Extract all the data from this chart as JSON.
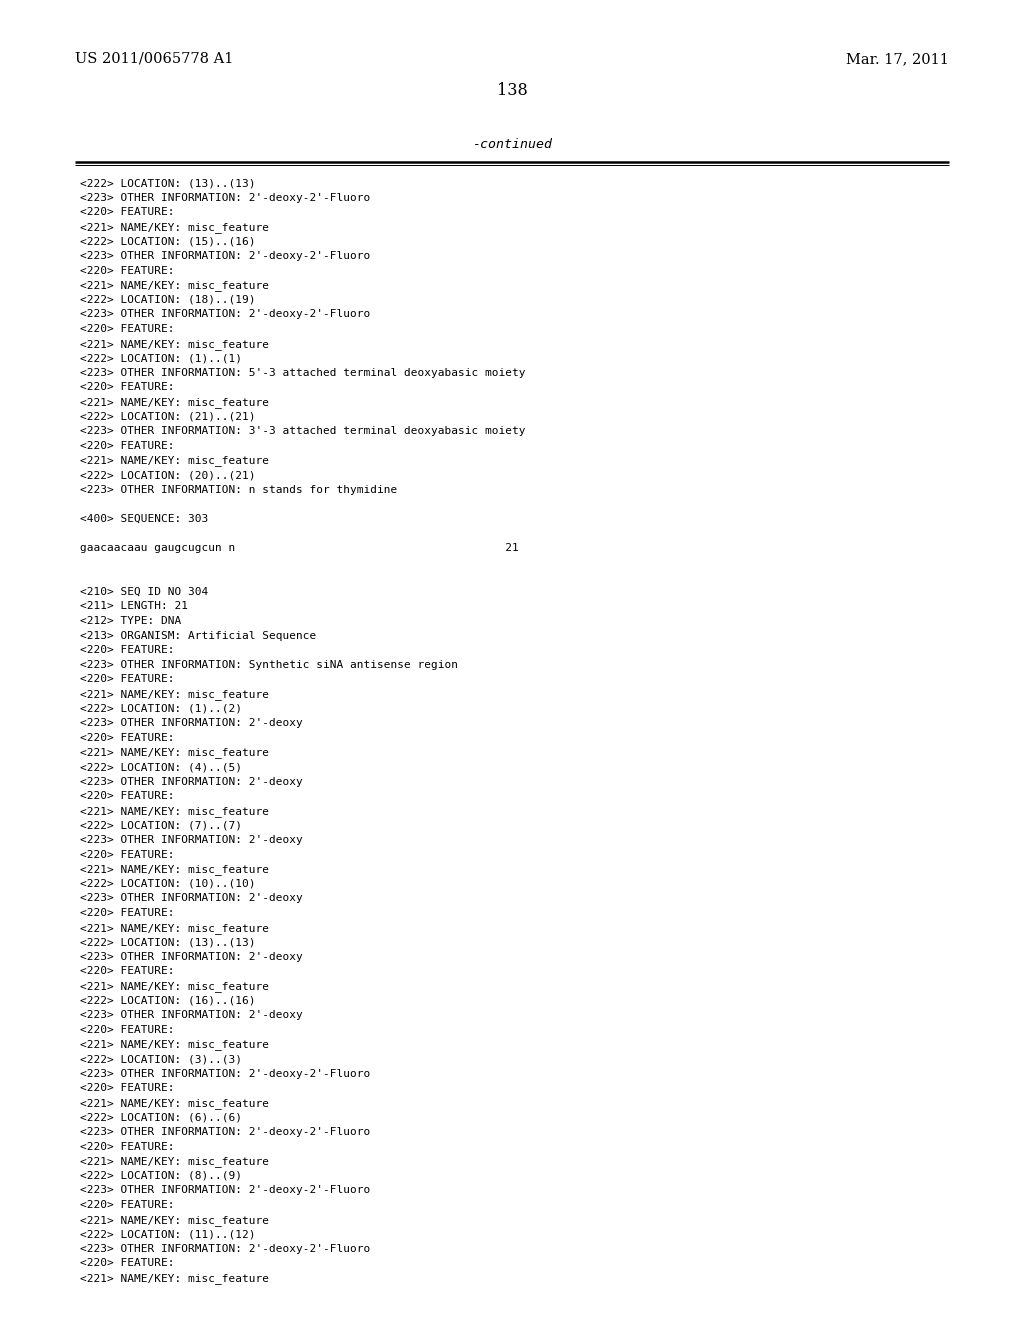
{
  "header_left": "US 2011/0065778 A1",
  "header_right": "Mar. 17, 2011",
  "page_number": "138",
  "continued_text": "-continued",
  "background_color": "#ffffff",
  "text_color": "#000000",
  "figwidth": 10.24,
  "figheight": 13.2,
  "dpi": 100,
  "content_lines": [
    "<222> LOCATION: (13)..(13)",
    "<223> OTHER INFORMATION: 2'-deoxy-2'-Fluoro",
    "<220> FEATURE:",
    "<221> NAME/KEY: misc_feature",
    "<222> LOCATION: (15)..(16)",
    "<223> OTHER INFORMATION: 2'-deoxy-2'-Fluoro",
    "<220> FEATURE:",
    "<221> NAME/KEY: misc_feature",
    "<222> LOCATION: (18)..(19)",
    "<223> OTHER INFORMATION: 2'-deoxy-2'-Fluoro",
    "<220> FEATURE:",
    "<221> NAME/KEY: misc_feature",
    "<222> LOCATION: (1)..(1)",
    "<223> OTHER INFORMATION: 5'-3 attached terminal deoxyabasic moiety",
    "<220> FEATURE:",
    "<221> NAME/KEY: misc_feature",
    "<222> LOCATION: (21)..(21)",
    "<223> OTHER INFORMATION: 3'-3 attached terminal deoxyabasic moiety",
    "<220> FEATURE:",
    "<221> NAME/KEY: misc_feature",
    "<222> LOCATION: (20)..(21)",
    "<223> OTHER INFORMATION: n stands for thymidine",
    "",
    "<400> SEQUENCE: 303",
    "",
    "gaacaacaau gaugcugcun n                                        21",
    "",
    "",
    "<210> SEQ ID NO 304",
    "<211> LENGTH: 21",
    "<212> TYPE: DNA",
    "<213> ORGANISM: Artificial Sequence",
    "<220> FEATURE:",
    "<223> OTHER INFORMATION: Synthetic siNA antisense region",
    "<220> FEATURE:",
    "<221> NAME/KEY: misc_feature",
    "<222> LOCATION: (1)..(2)",
    "<223> OTHER INFORMATION: 2'-deoxy",
    "<220> FEATURE:",
    "<221> NAME/KEY: misc_feature",
    "<222> LOCATION: (4)..(5)",
    "<223> OTHER INFORMATION: 2'-deoxy",
    "<220> FEATURE:",
    "<221> NAME/KEY: misc_feature",
    "<222> LOCATION: (7)..(7)",
    "<223> OTHER INFORMATION: 2'-deoxy",
    "<220> FEATURE:",
    "<221> NAME/KEY: misc_feature",
    "<222> LOCATION: (10)..(10)",
    "<223> OTHER INFORMATION: 2'-deoxy",
    "<220> FEATURE:",
    "<221> NAME/KEY: misc_feature",
    "<222> LOCATION: (13)..(13)",
    "<223> OTHER INFORMATION: 2'-deoxy",
    "<220> FEATURE:",
    "<221> NAME/KEY: misc_feature",
    "<222> LOCATION: (16)..(16)",
    "<223> OTHER INFORMATION: 2'-deoxy",
    "<220> FEATURE:",
    "<221> NAME/KEY: misc_feature",
    "<222> LOCATION: (3)..(3)",
    "<223> OTHER INFORMATION: 2'-deoxy-2'-Fluoro",
    "<220> FEATURE:",
    "<221> NAME/KEY: misc_feature",
    "<222> LOCATION: (6)..(6)",
    "<223> OTHER INFORMATION: 2'-deoxy-2'-Fluoro",
    "<220> FEATURE:",
    "<221> NAME/KEY: misc_feature",
    "<222> LOCATION: (8)..(9)",
    "<223> OTHER INFORMATION: 2'-deoxy-2'-Fluoro",
    "<220> FEATURE:",
    "<221> NAME/KEY: misc_feature",
    "<222> LOCATION: (11)..(12)",
    "<223> OTHER INFORMATION: 2'-deoxy-2'-Fluoro",
    "<220> FEATURE:",
    "<221> NAME/KEY: misc_feature"
  ]
}
